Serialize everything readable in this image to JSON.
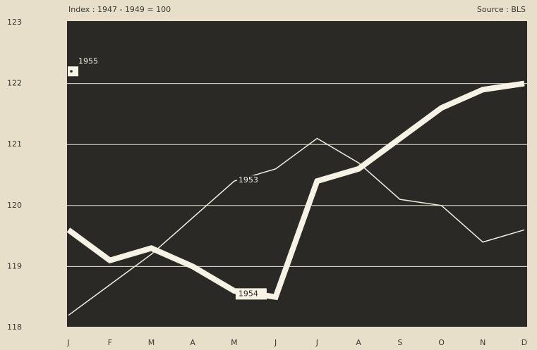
{
  "chart_data": {
    "type": "line",
    "subtitle": "Index : 1947 - 1949 = 100",
    "source": "Source : BLS",
    "categories": [
      "J",
      "F",
      "M",
      "A",
      "M",
      "J",
      "J",
      "A",
      "S",
      "O",
      "N",
      "D"
    ],
    "series": [
      {
        "name": "1953",
        "color": "#f3eee2",
        "values": [
          118.2,
          118.7,
          119.2,
          119.8,
          120.4,
          120.6,
          121.1,
          120.7,
          120.1,
          120.0,
          119.4,
          119.6
        ]
      },
      {
        "name": "1954",
        "color": "#f7f2e6",
        "values": [
          119.6,
          119.1,
          119.3,
          119.0,
          118.6,
          118.5,
          120.4,
          120.6,
          121.1,
          121.6,
          121.9,
          122.0
        ]
      },
      {
        "name": "1955",
        "color": "#f7f2e6",
        "values": [
          122.2,
          null,
          null,
          null,
          null,
          null,
          null,
          null,
          null,
          null,
          null,
          null
        ]
      }
    ],
    "ylim": [
      118,
      123
    ],
    "yticks": [
      118,
      119,
      120,
      121,
      122,
      123
    ],
    "grid": true
  }
}
